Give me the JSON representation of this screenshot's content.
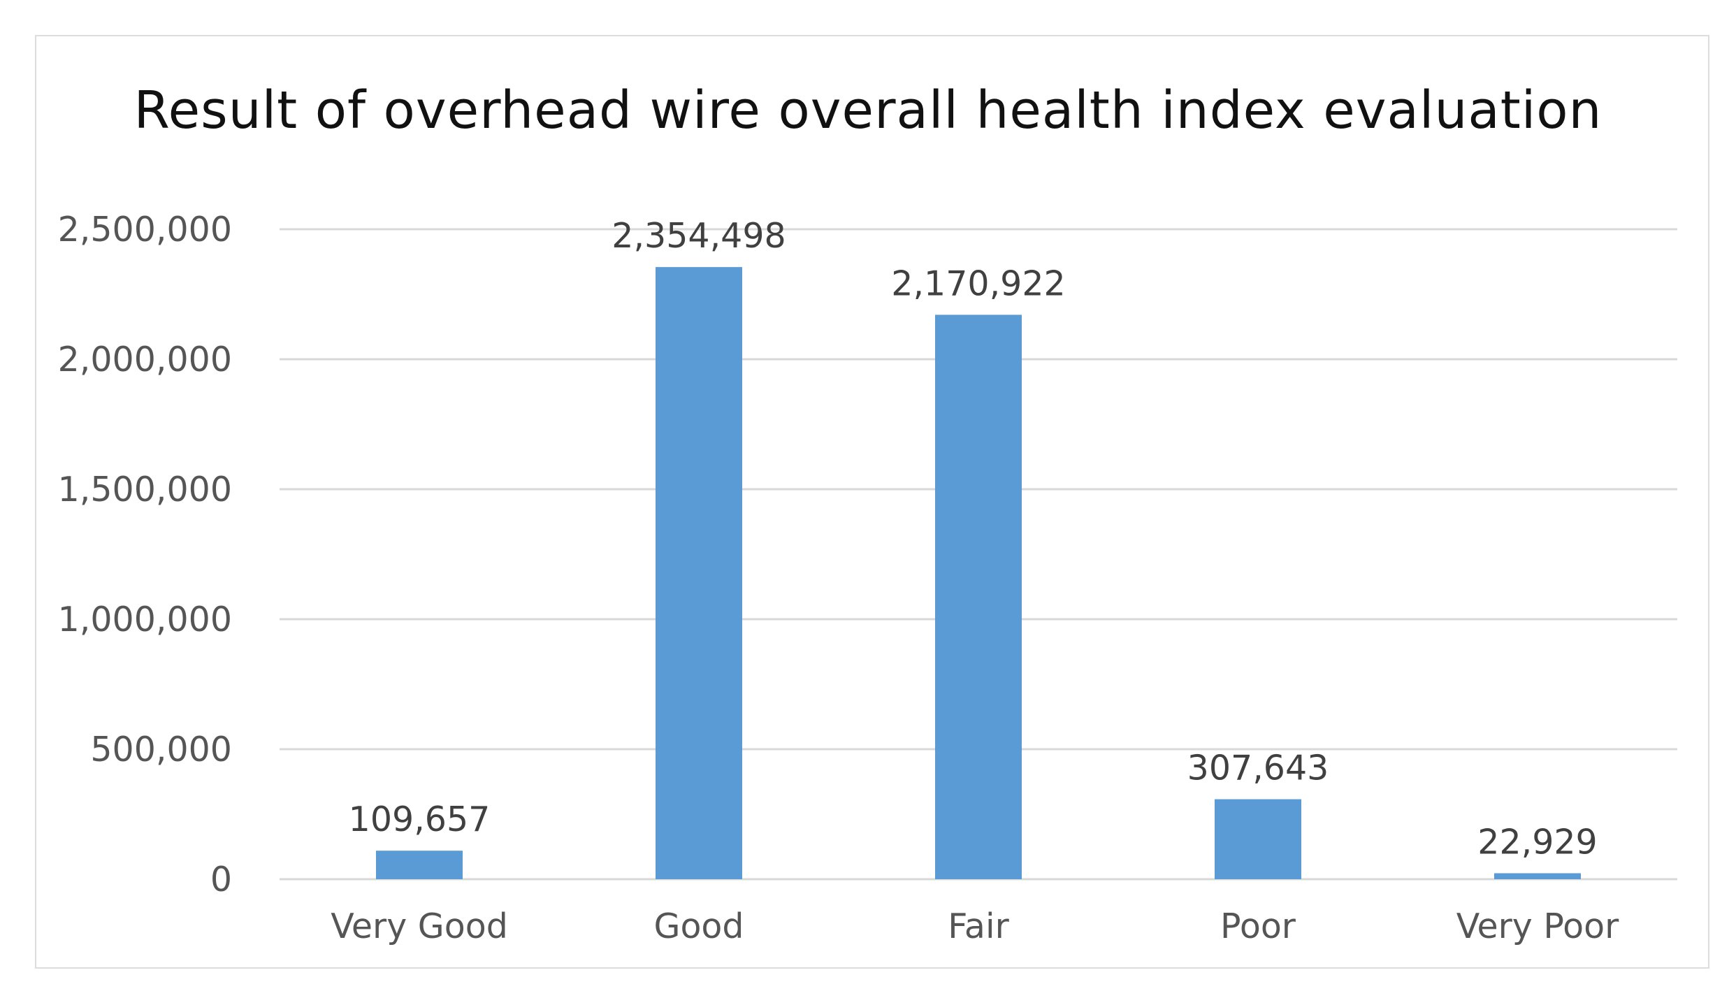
{
  "chart_data": {
    "type": "bar",
    "title": "Result of overhead wire overall health index evaluation",
    "xlabel": "",
    "ylabel": "",
    "categories": [
      "Very Good",
      "Good",
      "Fair",
      "Poor",
      "Very Poor"
    ],
    "values": [
      109657,
      2354498,
      2170922,
      307643,
      22929
    ],
    "data_labels": [
      "109,657",
      "2,354,498",
      "2,170,922",
      "307,643",
      "22,929"
    ],
    "ylim": [
      0,
      2500000
    ],
    "yticks": [
      0,
      500000,
      1000000,
      1500000,
      2000000,
      2500000
    ],
    "ytick_labels": [
      "0",
      "500,000",
      "1,000,000",
      "1,500,000",
      "2,000,000",
      "2,500,000"
    ],
    "grid": true,
    "legend": "none",
    "colors": {
      "bar": "#5b9bd5",
      "grid": "#d9d9d9",
      "axis": "#d9d9d9"
    }
  }
}
